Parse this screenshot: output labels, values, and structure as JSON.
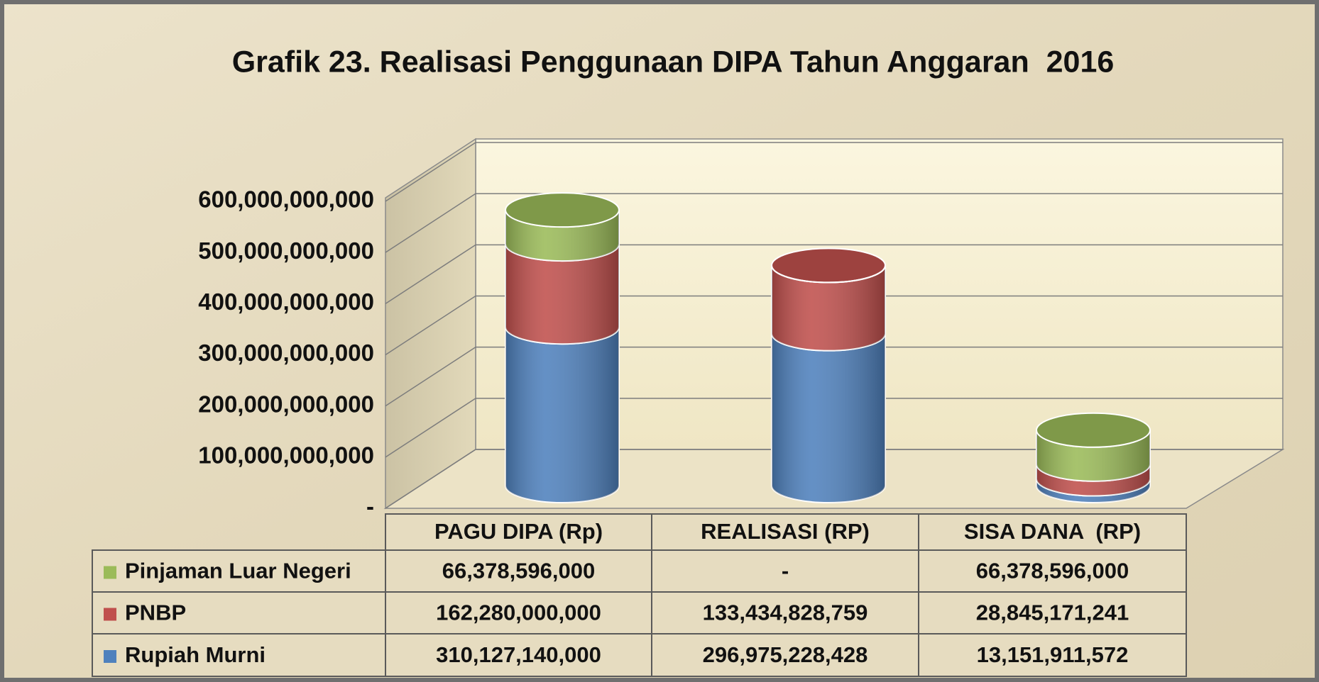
{
  "chart_data": {
    "type": "bar3d-stacked",
    "title": "Grafik 23. Realisasi Penggunaan DIPA Tahun Anggaran  2016",
    "categories": [
      "PAGU DIPA (Rp)",
      "REALISASI (RP)",
      "SISA DANA  (RP)"
    ],
    "series": [
      {
        "name": "Rupiah Murni",
        "color": "#4f81bd",
        "values": [
          310127140000,
          296975228428,
          13151911572
        ],
        "value_labels": [
          "310,127,140,000",
          "296,975,228,428",
          "13,151,911,572"
        ]
      },
      {
        "name": "PNBP",
        "color": "#c0504d",
        "values": [
          162280000000,
          133434828759,
          28845171241
        ],
        "value_labels": [
          "162,280,000,000",
          "133,434,828,759",
          "28,845,171,241"
        ]
      },
      {
        "name": "Pinjaman Luar Negeri",
        "color": "#9bbb59",
        "values": [
          66378596000,
          0,
          66378596000
        ],
        "value_labels": [
          "66,378,596,000",
          "-",
          "66,378,596,000"
        ]
      }
    ],
    "ylim": [
      0,
      600000000000
    ],
    "yticks": [
      {
        "value": 0,
        "label": "-"
      },
      {
        "value": 100000000000,
        "label": "100,000,000,000"
      },
      {
        "value": 200000000000,
        "label": "200,000,000,000"
      },
      {
        "value": 300000000000,
        "label": "300,000,000,000"
      },
      {
        "value": 400000000000,
        "label": "400,000,000,000"
      },
      {
        "value": 500000000000,
        "label": "500,000,000,000"
      },
      {
        "value": 600000000000,
        "label": "600,000,000,000"
      }
    ],
    "grid": true
  }
}
